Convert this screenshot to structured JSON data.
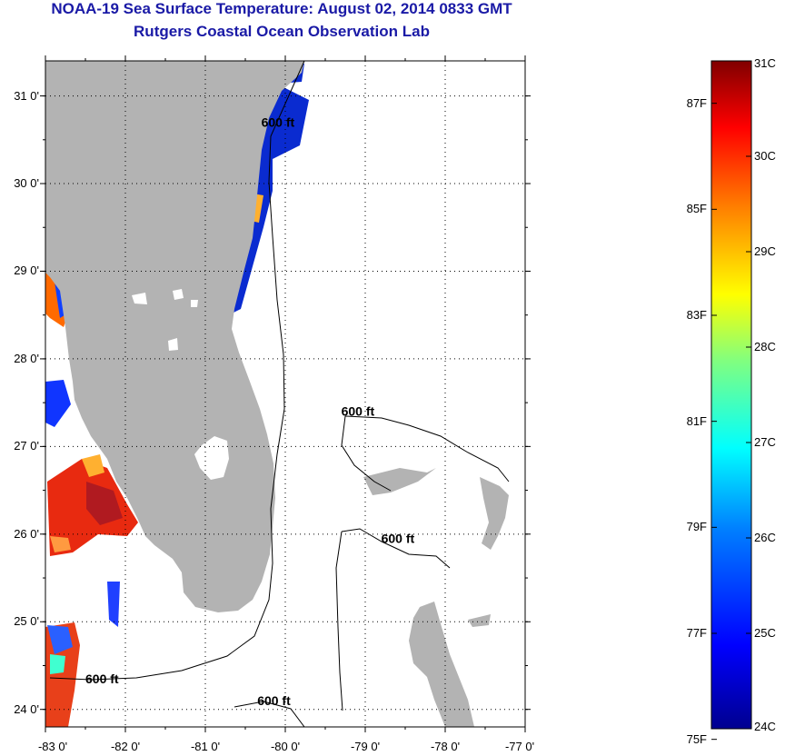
{
  "header": {
    "title": "NOAA-19 Sea Surface Temperature:  August 02, 2014 0833 GMT",
    "subtitle": "Rutgers Coastal Ocean Observation Lab"
  },
  "map": {
    "lon_range": [
      -83,
      -77
    ],
    "lat_range": [
      23.8,
      31.4
    ],
    "lat_ticks": [
      {
        "value": 31,
        "label": "31 0'"
      },
      {
        "value": 30,
        "label": "30 0'"
      },
      {
        "value": 29,
        "label": "29 0'"
      },
      {
        "value": 28,
        "label": "28 0'"
      },
      {
        "value": 27,
        "label": "27 0'"
      },
      {
        "value": 26,
        "label": "26 0'"
      },
      {
        "value": 25,
        "label": "25 0'"
      },
      {
        "value": 24,
        "label": "24 0'"
      }
    ],
    "lon_ticks": [
      {
        "value": -83,
        "label": "-83 0'"
      },
      {
        "value": -82,
        "label": "-82 0'"
      },
      {
        "value": -81,
        "label": "-81 0'"
      },
      {
        "value": -80,
        "label": "-80 0'"
      },
      {
        "value": -79,
        "label": "-79 0'"
      },
      {
        "value": -78,
        "label": "-78 0'"
      },
      {
        "value": -77,
        "label": "-77 0'"
      }
    ],
    "contour_labels": [
      {
        "text": "600 ft",
        "lon": -80.3,
        "lat": 30.65
      },
      {
        "text": "600 ft",
        "lon": -79.3,
        "lat": 27.35
      },
      {
        "text": "600 ft",
        "lon": -78.8,
        "lat": 25.9
      },
      {
        "text": "600 ft",
        "lon": -82.5,
        "lat": 24.3
      },
      {
        "text": "600 ft",
        "lon": -80.35,
        "lat": 24.05
      }
    ],
    "land_color": "#b3b3b3",
    "grid": true
  },
  "colorbar": {
    "celsius": [
      {
        "value": 31,
        "label": "31C"
      },
      {
        "value": 30,
        "label": "30C"
      },
      {
        "value": 29,
        "label": "29C"
      },
      {
        "value": 28,
        "label": "28C"
      },
      {
        "value": 27,
        "label": "27C"
      },
      {
        "value": 26,
        "label": "26C"
      },
      {
        "value": 25,
        "label": "25C"
      },
      {
        "value": 24,
        "label": "24C"
      }
    ],
    "fahrenheit": [
      {
        "value": 87,
        "label": "87F"
      },
      {
        "value": 85,
        "label": "85F"
      },
      {
        "value": 83,
        "label": "83F"
      },
      {
        "value": 81,
        "label": "81F"
      },
      {
        "value": 79,
        "label": "79F"
      },
      {
        "value": 77,
        "label": "77F"
      },
      {
        "value": 75,
        "label": "75F"
      }
    ],
    "range_c": [
      24,
      31
    ],
    "colors": [
      "#00008f",
      "#0000ff",
      "#0080ff",
      "#00ffff",
      "#80ff80",
      "#ffff00",
      "#ff8000",
      "#ff0000",
      "#800000"
    ]
  }
}
